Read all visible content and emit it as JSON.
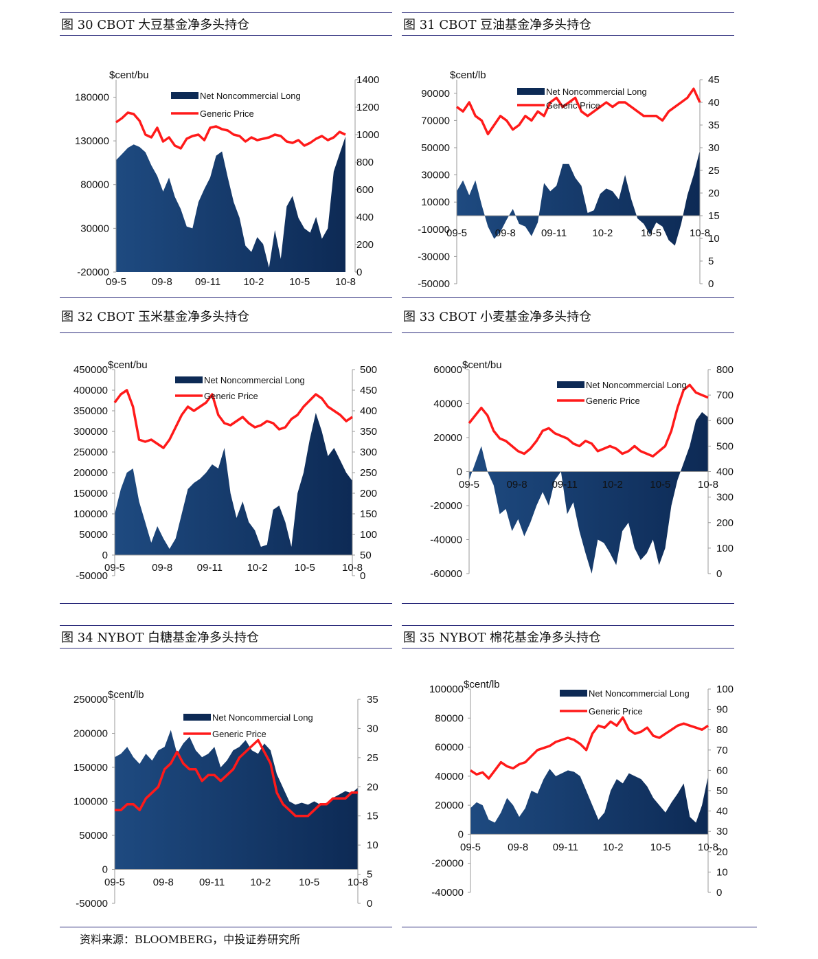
{
  "footer": {
    "source": "资料来源：BLOOMBERG，中投证券研究所"
  },
  "legend": {
    "long": "Net Noncommercial Long",
    "price": "Generic Price"
  },
  "colors": {
    "area": "#0d2a55",
    "price": "#ff1a1a"
  },
  "chart_data": [
    {
      "id": "c30",
      "title": "图 30 CBOT 大豆基金净多头持仓",
      "type": "area-line",
      "unit": "$cent/bu",
      "xticks": [
        "09-5",
        "09-8",
        "09-11",
        "10-2",
        "10-5",
        "10-8"
      ],
      "left_axis": {
        "min": -20000,
        "max": 200000,
        "ticks": [
          -20000,
          30000,
          80000,
          130000,
          180000
        ],
        "baseline": -20000
      },
      "right_axis": {
        "min": 0,
        "max": 1400,
        "ticks": [
          0,
          200,
          400,
          600,
          800,
          1000,
          1200,
          1400
        ]
      },
      "series": [
        {
          "name": "Net Noncommercial Long",
          "axis": "left",
          "kind": "area",
          "values": [
            108000,
            115000,
            122000,
            126000,
            123000,
            117000,
            102000,
            90000,
            72000,
            88000,
            66000,
            52000,
            32000,
            30000,
            60000,
            75000,
            88000,
            113000,
            118000,
            88000,
            60000,
            42000,
            10000,
            3000,
            20000,
            12000,
            -15000,
            28000,
            -5000,
            55000,
            67000,
            42000,
            30000,
            25000,
            43000,
            18000,
            30000,
            95000,
            115000,
            135000
          ]
        },
        {
          "name": "Generic Price",
          "axis": "right",
          "kind": "line",
          "values": [
            1090,
            1120,
            1160,
            1150,
            1100,
            1000,
            980,
            1050,
            950,
            980,
            920,
            900,
            970,
            990,
            1000,
            960,
            1050,
            1060,
            1040,
            1030,
            1000,
            990,
            950,
            980,
            960,
            970,
            980,
            1000,
            990,
            950,
            940,
            960,
            920,
            940,
            970,
            990,
            960,
            980,
            1020,
            1000
          ]
        }
      ]
    },
    {
      "id": "c31",
      "title": "图 31 CBOT 豆油基金净多头持仓",
      "type": "area-line",
      "unit": "$cent/lb",
      "xticks": [
        "09-5",
        "09-8",
        "09-11",
        "10-2",
        "10-5",
        "10-8"
      ],
      "left_axis": {
        "min": -50000,
        "max": 100000,
        "ticks": [
          -50000,
          -30000,
          -10000,
          10000,
          30000,
          50000,
          70000,
          90000
        ],
        "baseline": 0
      },
      "right_axis": {
        "min": 0,
        "max": 45,
        "ticks": [
          0,
          5,
          10,
          15,
          20,
          25,
          30,
          35,
          40,
          45
        ]
      },
      "series": [
        {
          "name": "Net Noncommercial Long",
          "axis": "left",
          "kind": "area",
          "values": [
            18000,
            26000,
            15000,
            26000,
            8000,
            -8000,
            -17000,
            -12000,
            -3000,
            5000,
            -6000,
            -8000,
            -15000,
            -5000,
            24000,
            18000,
            22000,
            38000,
            38000,
            28000,
            22000,
            2000,
            4000,
            16000,
            20000,
            18000,
            12000,
            30000,
            12000,
            -2000,
            -6000,
            -14000,
            -5000,
            -8000,
            -18000,
            -22000,
            -6000,
            15000,
            30000,
            48000
          ]
        },
        {
          "name": "Generic Price",
          "axis": "right",
          "kind": "line",
          "values": [
            39,
            38,
            40,
            37,
            36,
            33,
            35,
            37,
            36,
            34,
            35,
            37,
            36,
            38,
            37,
            40,
            41,
            39,
            40,
            41,
            38,
            37,
            38,
            39,
            40,
            39,
            40,
            40,
            39,
            38,
            37,
            37,
            37,
            36,
            38,
            39,
            40,
            41,
            43,
            40
          ]
        }
      ]
    },
    {
      "id": "c32",
      "title": "图 32 CBOT 玉米基金净多头持仓",
      "type": "area-line",
      "unit": "$cent/bu",
      "xticks": [
        "09-5",
        "09-8",
        "09-11",
        "10-2",
        "10-5",
        "10-8"
      ],
      "left_axis": {
        "min": -50000,
        "max": 450000,
        "ticks": [
          -50000,
          0,
          50000,
          100000,
          150000,
          200000,
          250000,
          300000,
          350000,
          400000,
          450000
        ],
        "baseline": 0
      },
      "right_axis": {
        "min": 0,
        "max": 500,
        "ticks": [
          0,
          50,
          100,
          150,
          200,
          250,
          300,
          350,
          400,
          450,
          500
        ]
      },
      "series": [
        {
          "name": "Net Noncommercial Long",
          "axis": "left",
          "kind": "area",
          "values": [
            100000,
            160000,
            200000,
            210000,
            130000,
            80000,
            30000,
            70000,
            40000,
            15000,
            40000,
            100000,
            160000,
            175000,
            185000,
            200000,
            220000,
            210000,
            260000,
            150000,
            90000,
            130000,
            80000,
            60000,
            20000,
            25000,
            110000,
            120000,
            80000,
            20000,
            150000,
            200000,
            280000,
            345000,
            300000,
            240000,
            260000,
            230000,
            200000,
            180000
          ]
        },
        {
          "name": "Generic Price",
          "axis": "right",
          "kind": "line",
          "values": [
            420,
            440,
            450,
            410,
            330,
            325,
            330,
            320,
            310,
            330,
            360,
            390,
            410,
            400,
            410,
            420,
            440,
            390,
            370,
            365,
            375,
            385,
            370,
            360,
            365,
            375,
            370,
            355,
            360,
            380,
            390,
            410,
            425,
            440,
            430,
            410,
            400,
            390,
            375,
            385
          ]
        }
      ]
    },
    {
      "id": "c33",
      "title": "图 33 CBOT 小麦基金净多头持仓",
      "type": "area-line",
      "unit": "$cent/bu",
      "xticks": [
        "09-5",
        "09-8",
        "09-11",
        "10-2",
        "10-5",
        "10-8"
      ],
      "left_axis": {
        "min": -60000,
        "max": 60000,
        "ticks": [
          -60000,
          -40000,
          -20000,
          0,
          20000,
          40000,
          60000
        ],
        "baseline": 0
      },
      "right_axis": {
        "min": 0,
        "max": 800,
        "ticks": [
          0,
          100,
          200,
          300,
          400,
          500,
          600,
          700,
          800
        ]
      },
      "series": [
        {
          "name": "Net Noncommercial Long",
          "axis": "left",
          "kind": "area",
          "values": [
            -5000,
            5000,
            15000,
            0,
            -8000,
            -25000,
            -22000,
            -35000,
            -28000,
            -38000,
            -30000,
            -20000,
            -12000,
            -20000,
            -5000,
            0,
            -25000,
            -18000,
            -35000,
            -48000,
            -60000,
            -40000,
            -42000,
            -48000,
            -55000,
            -35000,
            -30000,
            -45000,
            -52000,
            -48000,
            -40000,
            -55000,
            -45000,
            -20000,
            -5000,
            5000,
            15000,
            30000,
            35000,
            32000
          ]
        },
        {
          "name": "Generic Price",
          "axis": "right",
          "kind": "line",
          "values": [
            590,
            620,
            650,
            620,
            560,
            530,
            520,
            500,
            480,
            470,
            490,
            520,
            560,
            570,
            550,
            540,
            530,
            510,
            500,
            520,
            510,
            480,
            490,
            500,
            490,
            470,
            480,
            500,
            480,
            470,
            460,
            480,
            500,
            560,
            650,
            720,
            740,
            710,
            700,
            690
          ]
        }
      ]
    },
    {
      "id": "c34",
      "title": "图 34 NYBOT 白糖基金净多头持仓",
      "type": "area-line",
      "unit": "$cent/lb",
      "xticks": [
        "09-5",
        "09-8",
        "09-11",
        "10-2",
        "10-5",
        "10-8"
      ],
      "left_axis": {
        "min": -50000,
        "max": 250000,
        "ticks": [
          -50000,
          0,
          50000,
          100000,
          150000,
          200000,
          250000
        ],
        "baseline": 0
      },
      "right_axis": {
        "min": 0,
        "max": 35,
        "ticks": [
          0,
          5,
          10,
          15,
          20,
          25,
          30,
          35
        ]
      },
      "series": [
        {
          "name": "Net Noncommercial Long",
          "axis": "left",
          "kind": "area",
          "values": [
            165000,
            170000,
            180000,
            165000,
            155000,
            170000,
            160000,
            175000,
            180000,
            205000,
            170000,
            185000,
            195000,
            175000,
            165000,
            170000,
            180000,
            150000,
            160000,
            175000,
            180000,
            190000,
            175000,
            170000,
            185000,
            175000,
            140000,
            120000,
            100000,
            95000,
            98000,
            95000,
            100000,
            95000,
            98000,
            105000,
            110000,
            115000,
            112000,
            120000
          ]
        },
        {
          "name": "Generic Price",
          "axis": "right",
          "kind": "line",
          "values": [
            16,
            16,
            17,
            17,
            16,
            18,
            19,
            20,
            23,
            24,
            26,
            24,
            23,
            23,
            21,
            22,
            22,
            21,
            22,
            23,
            25,
            26,
            27,
            28,
            26,
            24,
            19,
            17,
            16,
            15,
            15,
            15,
            16,
            17,
            17,
            18,
            18,
            18,
            19,
            19
          ]
        }
      ]
    },
    {
      "id": "c35",
      "title": "图 35 NYBOT 棉花基金净多头持仓",
      "type": "area-line",
      "unit": "$cent/lb",
      "xticks": [
        "09-5",
        "09-8",
        "09-11",
        "10-2",
        "10-5",
        "10-8"
      ],
      "left_axis": {
        "min": -40000,
        "max": 100000,
        "ticks": [
          -40000,
          -20000,
          0,
          20000,
          40000,
          60000,
          80000,
          100000
        ],
        "baseline": 0
      },
      "right_axis": {
        "min": 0,
        "max": 100,
        "ticks": [
          0,
          10,
          20,
          30,
          40,
          50,
          60,
          70,
          80,
          90,
          100
        ]
      },
      "series": [
        {
          "name": "Net Noncommercial Long",
          "axis": "left",
          "kind": "area",
          "values": [
            18000,
            22000,
            20000,
            10000,
            8000,
            15000,
            25000,
            20000,
            12000,
            18000,
            30000,
            28000,
            38000,
            45000,
            40000,
            42000,
            44000,
            43000,
            40000,
            30000,
            20000,
            10000,
            15000,
            30000,
            38000,
            35000,
            42000,
            40000,
            38000,
            33000,
            25000,
            20000,
            15000,
            22000,
            28000,
            35000,
            12000,
            8000,
            20000,
            40000
          ]
        },
        {
          "name": "Generic Price",
          "axis": "right",
          "kind": "line",
          "values": [
            60,
            58,
            59,
            56,
            60,
            64,
            62,
            61,
            63,
            64,
            67,
            70,
            71,
            72,
            74,
            75,
            76,
            75,
            73,
            70,
            78,
            82,
            81,
            84,
            82,
            86,
            80,
            78,
            79,
            81,
            77,
            76,
            78,
            80,
            82,
            83,
            82,
            81,
            80,
            82
          ]
        }
      ]
    }
  ]
}
